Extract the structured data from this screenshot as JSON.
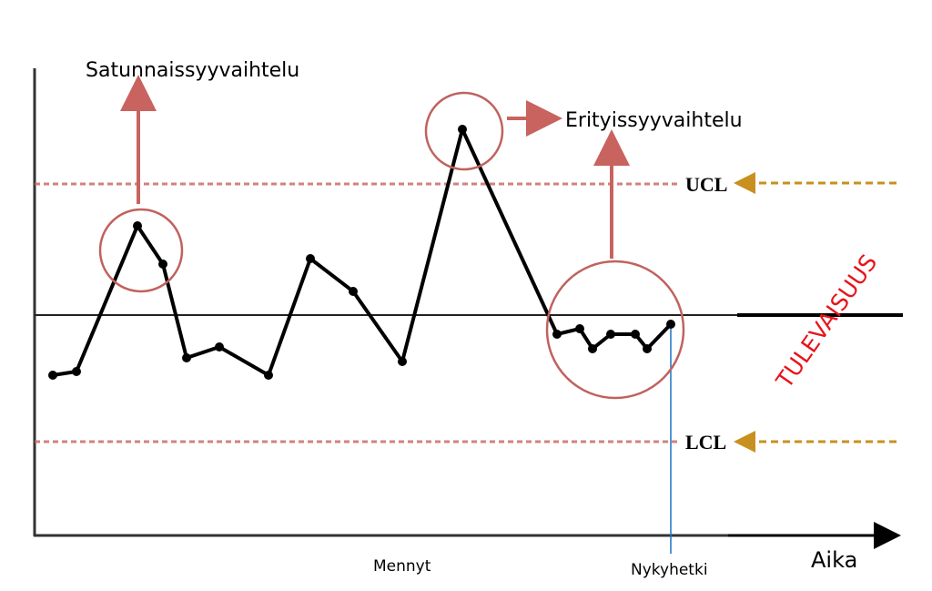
{
  "annotations": {
    "random": "Satunnaissyyvaihtelu",
    "special": "Erityissyyvaihtelu",
    "ucl": "UCL",
    "lcl": "LCL",
    "future": "TULEVAISUUS",
    "past": "Mennyt",
    "now": "Nykyhetki",
    "x_axis": "Aika"
  }
}
